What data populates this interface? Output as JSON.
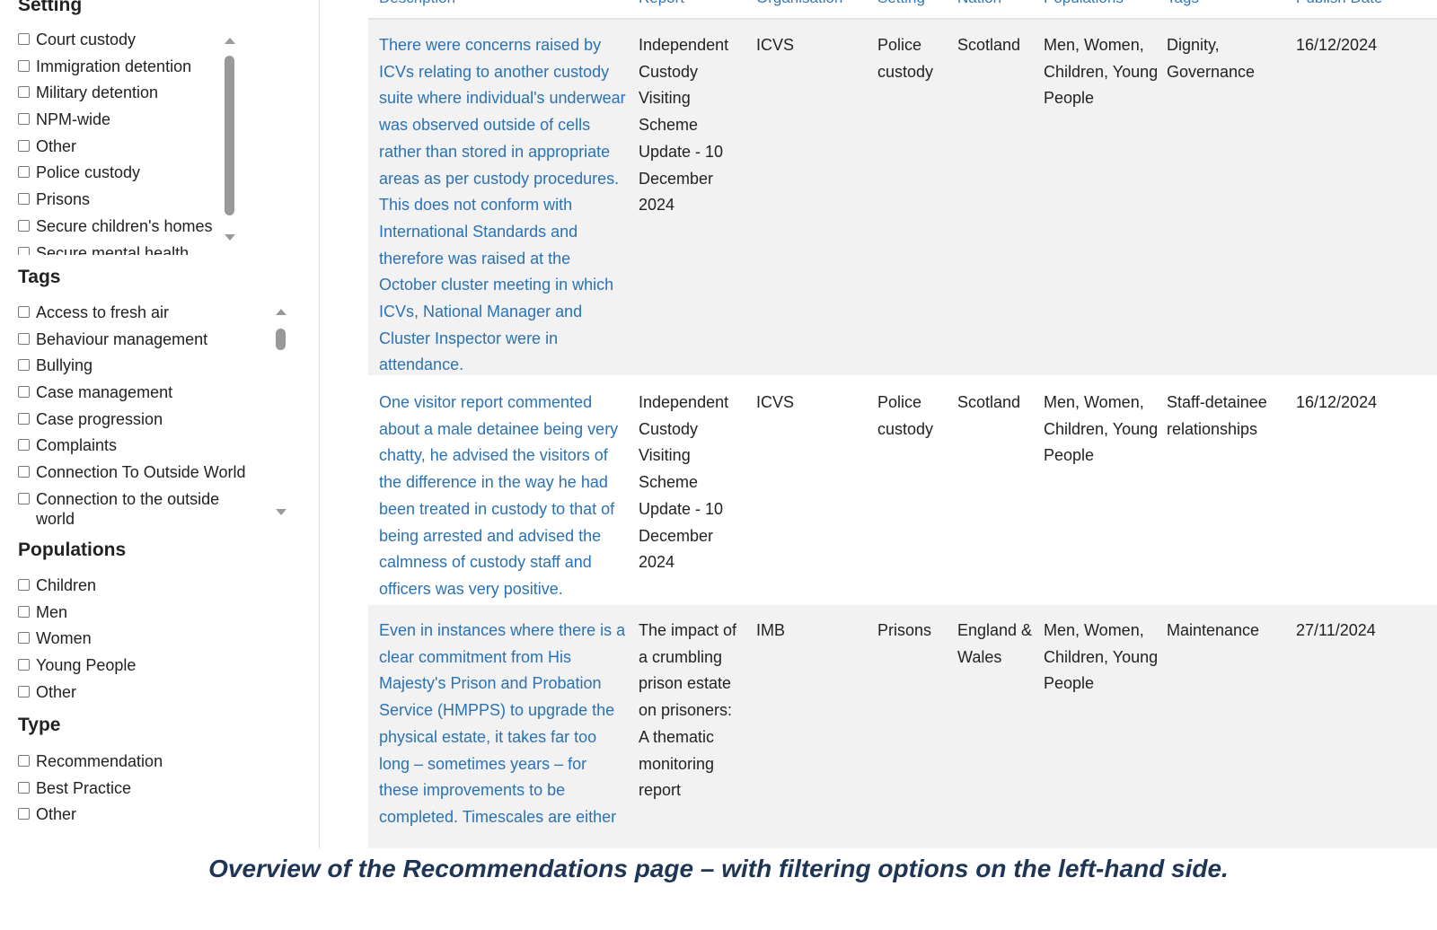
{
  "sidebar": {
    "setting": {
      "title": "Setting",
      "items": [
        "Court custody",
        "Immigration detention",
        "Military detention",
        "NPM-wide",
        "Other",
        "Police custody",
        "Prisons",
        "Secure children's homes",
        "Secure mental health"
      ]
    },
    "tags": {
      "title": "Tags",
      "items": [
        "Access to fresh air",
        "Behaviour management",
        "Bullying",
        "Case management",
        "Case progression",
        "Complaints",
        "Connection To Outside World",
        "Connection to the outside",
        "world"
      ]
    },
    "populations": {
      "title": "Populations",
      "items": [
        "Children",
        "Men",
        "Women",
        "Young People",
        "Other"
      ]
    },
    "type": {
      "title": "Type",
      "items": [
        "Recommendation",
        "Best Practice",
        "Other"
      ]
    }
  },
  "table": {
    "headers": [
      "Description",
      "Report",
      "Organisation",
      "Setting",
      "Nation",
      "Populations",
      "Tags",
      "Publish Date"
    ],
    "rows": [
      [
        "There were concerns raised by ICVs relating to another custody suite where individual's underwear was observed outside of cells rather than stored in appropriate areas as per custody procedures. This does not conform with International Standards and therefore was raised at the October cluster meeting in which ICVs, National Manager and Cluster Inspector were in attendance.",
        "Independent Custody Visiting Scheme Update - 10 December 2024",
        "ICVS",
        "Police custody",
        "Scotland",
        "Men, Women, Children, Young People",
        "Dignity, Governance",
        "16/12/2024"
      ],
      [
        "One visitor report commented about a male detainee being very chatty, he advised the visitors of the difference in the way he had been treated in custody to that of being arrested and advised the calmness of custody staff and officers was very positive.",
        "Independent Custody Visiting Scheme Update - 10 December 2024",
        "ICVS",
        "Police custody",
        "Scotland",
        "Men, Women, Children, Young People",
        "Staff-detainee relationships",
        "16/12/2024"
      ],
      [
        "Even in instances where there is a clear commitment from His Majesty's Prison and Probation Service (HMPPS) to upgrade the physical estate, it takes far too long – sometimes years – for these improvements to be completed. Timescales are either",
        "The impact of a crumbling prison estate on prisoners: A thematic monitoring report",
        "IMB",
        "Prisons",
        "England & Wales",
        "Men, Women, Children, Young People",
        "Maintenance",
        "27/11/2024"
      ]
    ]
  },
  "caption": "Overview of the Recommendations page – with filtering options on the left-hand side."
}
